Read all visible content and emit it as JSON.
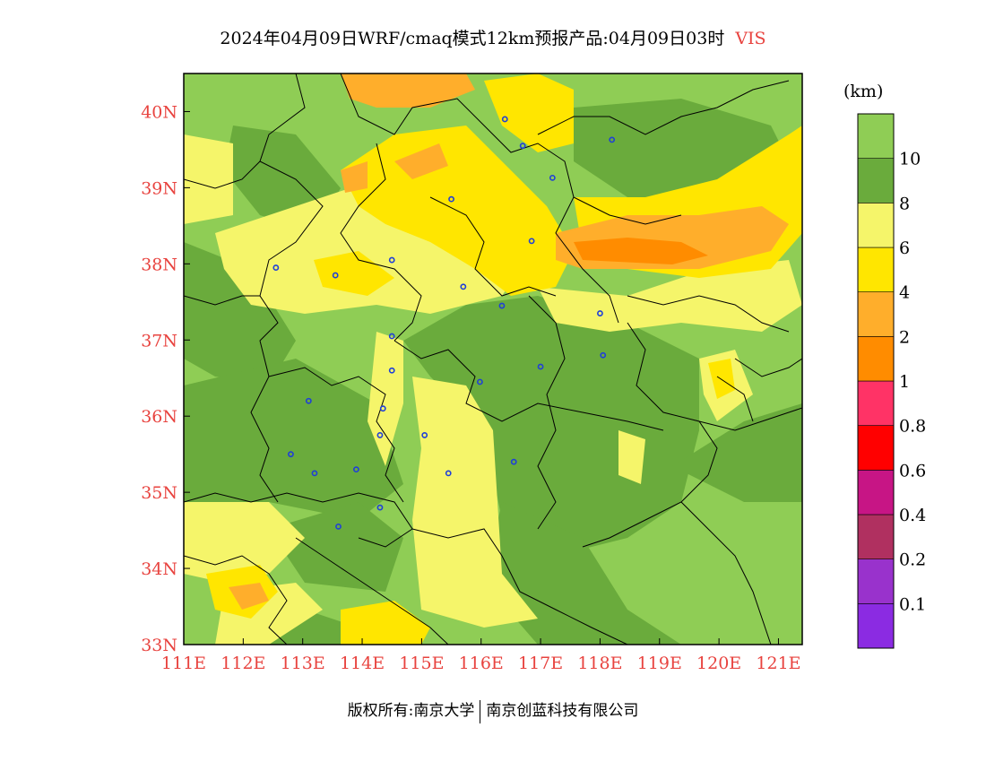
{
  "title": {
    "main": "2024年04月09日WRF/cmaq模式12km预报产品:04月09日03时",
    "variable": "VIS"
  },
  "map": {
    "lon_range": [
      111,
      121.4
    ],
    "lat_range": [
      33,
      40.5
    ],
    "lon_ticks": [
      "111E",
      "112E",
      "113E",
      "114E",
      "115E",
      "116E",
      "117E",
      "118E",
      "119E",
      "120E",
      "121E"
    ],
    "lat_ticks": [
      "33N",
      "34N",
      "35N",
      "36N",
      "37N",
      "38N",
      "39N",
      "40N"
    ],
    "tick_color": "#e8433f",
    "city_marker_color": "#1f3fd8",
    "cities": [
      {
        "lon": 116.4,
        "lat": 39.9
      },
      {
        "lon": 116.7,
        "lat": 39.55
      },
      {
        "lon": 117.2,
        "lat": 39.13
      },
      {
        "lon": 118.2,
        "lat": 39.63
      },
      {
        "lon": 115.5,
        "lat": 38.85
      },
      {
        "lon": 116.85,
        "lat": 38.3
      },
      {
        "lon": 112.55,
        "lat": 37.95
      },
      {
        "lon": 113.55,
        "lat": 37.85
      },
      {
        "lon": 114.5,
        "lat": 38.05
      },
      {
        "lon": 115.7,
        "lat": 37.7
      },
      {
        "lon": 116.35,
        "lat": 37.45
      },
      {
        "lon": 118.0,
        "lat": 37.35
      },
      {
        "lon": 114.5,
        "lat": 37.05
      },
      {
        "lon": 114.5,
        "lat": 36.6
      },
      {
        "lon": 115.98,
        "lat": 36.45
      },
      {
        "lon": 117.0,
        "lat": 36.65
      },
      {
        "lon": 118.05,
        "lat": 36.8
      },
      {
        "lon": 113.1,
        "lat": 36.2
      },
      {
        "lon": 114.35,
        "lat": 36.1
      },
      {
        "lon": 114.3,
        "lat": 35.75
      },
      {
        "lon": 115.05,
        "lat": 35.75
      },
      {
        "lon": 112.8,
        "lat": 35.5
      },
      {
        "lon": 113.2,
        "lat": 35.25
      },
      {
        "lon": 113.9,
        "lat": 35.3
      },
      {
        "lon": 115.45,
        "lat": 35.25
      },
      {
        "lon": 116.55,
        "lat": 35.4
      },
      {
        "lon": 114.3,
        "lat": 34.8
      },
      {
        "lon": 113.6,
        "lat": 34.55
      }
    ]
  },
  "legend": {
    "unit": "(km)",
    "bins": [
      {
        "color": "#8b2be2"
      },
      {
        "color": "#9932cc",
        "label": "0.1"
      },
      {
        "color": "#b03060",
        "label": "0.2"
      },
      {
        "color": "#c71585",
        "label": "0.4"
      },
      {
        "color": "#ff0000",
        "label": "0.6"
      },
      {
        "color": "#ff3366",
        "label": "0.8"
      },
      {
        "color": "#ff8c00",
        "label": "1"
      },
      {
        "color": "#ffae2b",
        "label": "2"
      },
      {
        "color": "#ffe600",
        "label": "4"
      },
      {
        "color": "#f5f56a",
        "label": "6"
      },
      {
        "color": "#6aab3c",
        "label": "8"
      },
      {
        "color": "#8fcd55",
        "label": "10"
      }
    ]
  },
  "footer": {
    "left": "版权所有:南京大学",
    "right": "南京创蓝科技有限公司"
  }
}
